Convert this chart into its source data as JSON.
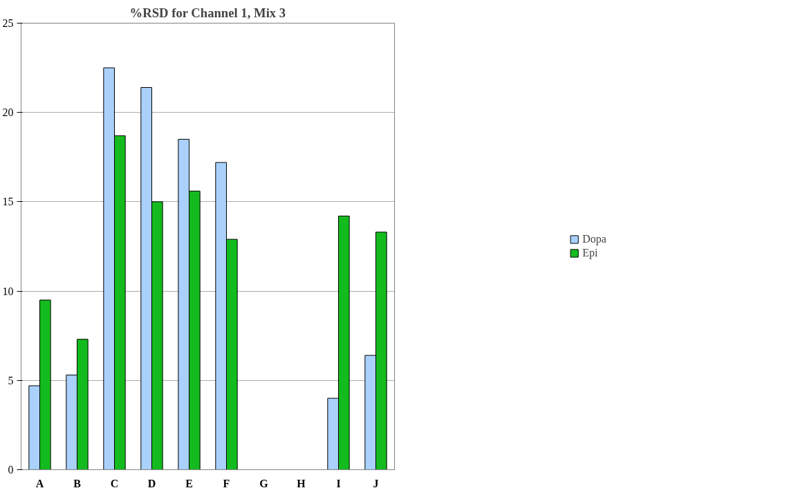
{
  "chart_data": {
    "type": "bar",
    "title": "%RSD for Channel 1, Mix 3",
    "categories": [
      "A",
      "B",
      "C",
      "D",
      "E",
      "F",
      "G",
      "H",
      "I",
      "J"
    ],
    "series": [
      {
        "name": "Dopa",
        "color": "#a9d1fc",
        "values": [
          4.7,
          5.3,
          22.5,
          21.4,
          18.5,
          17.2,
          null,
          null,
          4.0,
          6.4
        ]
      },
      {
        "name": "Epi",
        "color": "#14bb1e",
        "values": [
          9.5,
          7.3,
          18.7,
          15.0,
          15.6,
          12.9,
          null,
          null,
          14.2,
          13.3
        ]
      }
    ],
    "ylim": [
      0,
      25
    ],
    "yticks": [
      0,
      5,
      10,
      15,
      20,
      25
    ],
    "grid": "y",
    "legend": "right"
  }
}
